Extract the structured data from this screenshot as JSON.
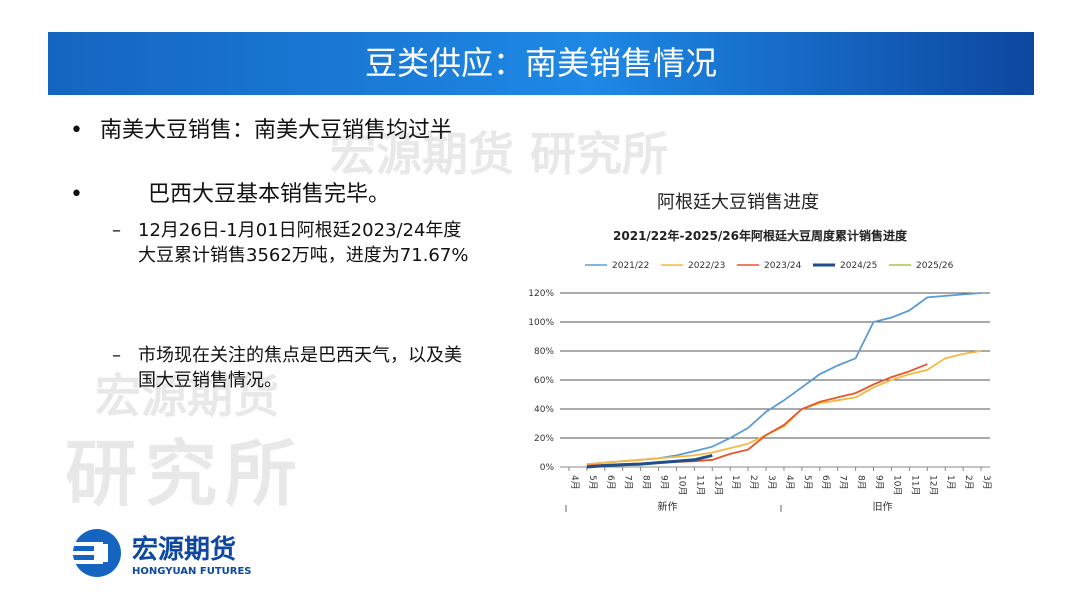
{
  "header": {
    "title": "豆类供应：南美销售情况"
  },
  "bullets": [
    {
      "text": "南美大豆销售：南美大豆销售均过半"
    },
    {
      "text": "巴西大豆基本销售完毕。",
      "subs": [
        "12月26日-1月01日阿根廷2023/24年度大豆累计销售3562万吨，进度为71.67%",
        "市场现在关注的焦点是巴西天气，以及美国大豆销售情况。"
      ]
    }
  ],
  "watermarks": [
    "宏源期货 研究所",
    "宏源期货",
    "研究所"
  ],
  "logo": {
    "name": "宏源期货",
    "english": "HONGYUAN FUTURES"
  },
  "chart_caption": "阿根廷大豆销售进度",
  "chart_data": {
    "type": "line",
    "title": "2021/22年-2025/26年阿根廷大豆周度累计销售进度",
    "categories": [
      "4月",
      "5月",
      "6月",
      "7月",
      "8月",
      "9月",
      "10月",
      "11月",
      "12月",
      "1月",
      "2月",
      "3月",
      "4月",
      "5月",
      "6月",
      "7月",
      "8月",
      "9月",
      "10月",
      "11月",
      "12月",
      "1月",
      "2月",
      "3月"
    ],
    "groups": [
      "新作",
      "旧作"
    ],
    "series": [
      {
        "name": "2021/22",
        "color": "#5b9bd5",
        "values": [
          null,
          2,
          3,
          4,
          5,
          6,
          8,
          11,
          14,
          20,
          27,
          38,
          46,
          55,
          64,
          70,
          75,
          100,
          103,
          108,
          117,
          118,
          119,
          120
        ]
      },
      {
        "name": "2022/23",
        "color": "#f4b942",
        "values": [
          null,
          2,
          3,
          4,
          5,
          6,
          7,
          8,
          10,
          13,
          16,
          22,
          28,
          40,
          44,
          46,
          48,
          55,
          60,
          64,
          67,
          75,
          78,
          80
        ]
      },
      {
        "name": "2023/24",
        "color": "#e8542a",
        "values": [
          null,
          1,
          1.5,
          2,
          2.5,
          3,
          3.5,
          4,
          5,
          9,
          12,
          22,
          29,
          40,
          45,
          48,
          51,
          57,
          62,
          66,
          71,
          null,
          null,
          null
        ]
      },
      {
        "name": "2024/25",
        "color": "#1f4e8c",
        "values": [
          null,
          0,
          1,
          1.5,
          2,
          3,
          4,
          5,
          8,
          null,
          null,
          null,
          null,
          null,
          null,
          null,
          null,
          null,
          null,
          null,
          null,
          null,
          null,
          null
        ]
      },
      {
        "name": "2025/26",
        "color": "#a9c84a",
        "values": [
          null,
          null,
          null,
          null,
          null,
          null,
          null,
          null,
          null,
          null,
          null,
          null,
          null,
          null,
          null,
          null,
          null,
          null,
          null,
          null,
          null,
          null,
          null,
          null
        ]
      }
    ],
    "ylim": [
      0,
      120
    ],
    "yticks": [
      {
        "value": 0,
        "label": "0%"
      },
      {
        "value": 20,
        "label": "20%"
      },
      {
        "value": 40,
        "label": "40%"
      },
      {
        "value": 60,
        "label": "60%"
      },
      {
        "value": 80,
        "label": "80%"
      },
      {
        "value": 100,
        "label": "100%"
      },
      {
        "value": 120,
        "label": "120%"
      }
    ],
    "grid": true,
    "legend": "top"
  }
}
